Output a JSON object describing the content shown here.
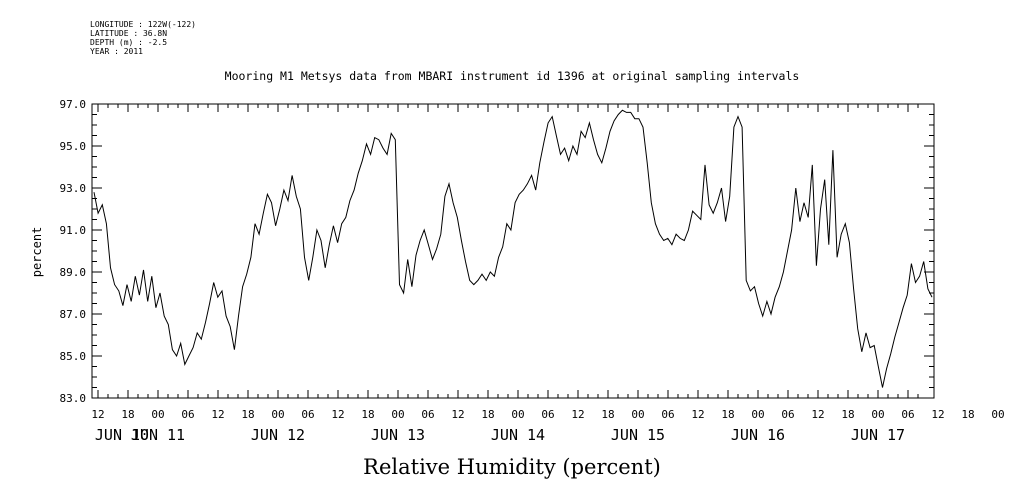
{
  "meta": {
    "longitude": "LONGITUDE : 122W(-122)",
    "latitude": "LATITUDE : 36.8N",
    "depth": "DEPTH (m) : -2.5",
    "year": "YEAR : 2011"
  },
  "chart_data": {
    "type": "line",
    "title": "Mooring M1 Metsys data from MBARI instrument id 1396 at original sampling intervals",
    "xlabel": "Relative Humidity (percent)",
    "ylabel": "percent",
    "ylim": [
      83.0,
      97.0
    ],
    "yticks": [
      "83.0",
      "85.0",
      "87.0",
      "89.0",
      "91.0",
      "93.0",
      "95.0",
      "97.0"
    ],
    "xlim_hours_labels": "JUN 10 09:00 to JUN 17 14:00",
    "hour_tick_labels": [
      "12",
      "18",
      "00",
      "06",
      "12",
      "18",
      "00",
      "06",
      "12",
      "18",
      "00",
      "06",
      "12",
      "18",
      "00",
      "06",
      "12",
      "18",
      "00",
      "06",
      "12",
      "18",
      "00",
      "06",
      "12",
      "18",
      "00",
      "06",
      "12",
      "18",
      "00",
      "06"
    ],
    "day_labels": [
      "JUN 10",
      "JUN 11",
      "JUN 12",
      "JUN 13",
      "JUN 14",
      "JUN 15",
      "JUN 16",
      "JUN 17"
    ],
    "grid": false,
    "series": [
      {
        "values": [
          [
            1,
            92.8
          ],
          [
            2,
            91.8
          ],
          [
            3,
            92.2
          ],
          [
            4,
            91.3
          ],
          [
            5,
            89.2
          ],
          [
            6,
            88.4
          ],
          [
            7,
            88.1
          ],
          [
            8,
            87.4
          ],
          [
            9,
            88.4
          ],
          [
            10,
            87.6
          ],
          [
            11,
            88.8
          ],
          [
            12,
            87.9
          ],
          [
            13,
            89.1
          ],
          [
            14,
            87.6
          ],
          [
            15,
            88.8
          ],
          [
            16,
            87.3
          ],
          [
            17,
            88.0
          ],
          [
            18,
            86.9
          ],
          [
            19,
            86.5
          ],
          [
            20,
            85.3
          ],
          [
            21,
            85.0
          ],
          [
            22,
            85.6
          ],
          [
            23,
            84.6
          ],
          [
            24,
            85.0
          ],
          [
            25,
            85.4
          ],
          [
            26,
            86.1
          ],
          [
            27,
            85.8
          ],
          [
            28,
            86.6
          ],
          [
            29,
            87.5
          ],
          [
            30,
            88.5
          ],
          [
            31,
            87.8
          ],
          [
            32,
            88.1
          ],
          [
            33,
            86.9
          ],
          [
            34,
            86.4
          ],
          [
            35,
            85.3
          ],
          [
            36,
            86.9
          ],
          [
            37,
            88.3
          ],
          [
            38,
            88.9
          ],
          [
            39,
            89.7
          ],
          [
            40,
            91.3
          ],
          [
            41,
            90.8
          ],
          [
            42,
            91.8
          ],
          [
            43,
            92.7
          ],
          [
            44,
            92.3
          ],
          [
            45,
            91.2
          ],
          [
            46,
            92.0
          ],
          [
            47,
            92.9
          ],
          [
            48,
            92.4
          ],
          [
            49,
            93.6
          ],
          [
            50,
            92.6
          ],
          [
            51,
            92.0
          ],
          [
            52,
            89.7
          ],
          [
            53,
            88.6
          ],
          [
            54,
            89.7
          ],
          [
            55,
            91.0
          ],
          [
            56,
            90.5
          ],
          [
            57,
            89.2
          ],
          [
            58,
            90.3
          ],
          [
            59,
            91.2
          ],
          [
            60,
            90.4
          ],
          [
            61,
            91.3
          ],
          [
            62,
            91.6
          ],
          [
            63,
            92.4
          ],
          [
            64,
            92.9
          ],
          [
            65,
            93.7
          ],
          [
            66,
            94.3
          ],
          [
            67,
            95.1
          ],
          [
            68,
            94.6
          ],
          [
            69,
            95.4
          ],
          [
            70,
            95.3
          ],
          [
            71,
            94.9
          ],
          [
            72,
            94.6
          ],
          [
            73,
            95.6
          ],
          [
            74,
            95.3
          ],
          [
            75,
            88.4
          ],
          [
            76,
            88.0
          ],
          [
            77,
            89.6
          ],
          [
            78,
            88.3
          ],
          [
            79,
            89.8
          ],
          [
            80,
            90.5
          ],
          [
            81,
            91.0
          ],
          [
            82,
            90.3
          ],
          [
            83,
            89.6
          ],
          [
            84,
            90.1
          ],
          [
            85,
            90.8
          ],
          [
            86,
            92.6
          ],
          [
            87,
            93.2
          ],
          [
            88,
            92.3
          ],
          [
            89,
            91.6
          ],
          [
            90,
            90.5
          ],
          [
            91,
            89.5
          ],
          [
            92,
            88.6
          ],
          [
            93,
            88.4
          ],
          [
            94,
            88.6
          ],
          [
            95,
            88.9
          ],
          [
            96,
            88.6
          ],
          [
            97,
            89.0
          ],
          [
            98,
            88.8
          ],
          [
            99,
            89.7
          ],
          [
            100,
            90.2
          ],
          [
            101,
            91.3
          ],
          [
            102,
            91.0
          ],
          [
            103,
            92.3
          ],
          [
            104,
            92.7
          ],
          [
            105,
            92.9
          ],
          [
            106,
            93.2
          ],
          [
            107,
            93.6
          ],
          [
            108,
            92.9
          ],
          [
            109,
            94.2
          ],
          [
            110,
            95.2
          ],
          [
            111,
            96.1
          ],
          [
            112,
            96.4
          ],
          [
            113,
            95.5
          ],
          [
            114,
            94.6
          ],
          [
            115,
            94.9
          ],
          [
            116,
            94.3
          ],
          [
            117,
            95.0
          ],
          [
            118,
            94.6
          ],
          [
            119,
            95.7
          ],
          [
            120,
            95.4
          ],
          [
            121,
            96.1
          ],
          [
            122,
            95.3
          ],
          [
            123,
            94.6
          ],
          [
            124,
            94.2
          ],
          [
            125,
            94.9
          ],
          [
            126,
            95.7
          ],
          [
            127,
            96.2
          ],
          [
            128,
            96.5
          ],
          [
            129,
            96.7
          ],
          [
            130,
            96.6
          ],
          [
            131,
            96.6
          ],
          [
            132,
            96.3
          ],
          [
            133,
            96.3
          ],
          [
            134,
            95.9
          ],
          [
            135,
            94.2
          ],
          [
            136,
            92.3
          ],
          [
            137,
            91.3
          ],
          [
            138,
            90.8
          ],
          [
            139,
            90.5
          ],
          [
            140,
            90.6
          ],
          [
            141,
            90.3
          ],
          [
            142,
            90.8
          ],
          [
            143,
            90.6
          ],
          [
            144,
            90.5
          ],
          [
            145,
            91.0
          ],
          [
            146,
            91.9
          ],
          [
            147,
            91.7
          ],
          [
            148,
            91.5
          ],
          [
            149,
            94.1
          ],
          [
            150,
            92.2
          ],
          [
            151,
            91.8
          ],
          [
            152,
            92.3
          ],
          [
            153,
            93.0
          ],
          [
            154,
            91.4
          ],
          [
            155,
            92.6
          ],
          [
            156,
            95.9
          ],
          [
            157,
            96.4
          ],
          [
            158,
            95.9
          ],
          [
            159,
            88.6
          ],
          [
            160,
            88.1
          ],
          [
            161,
            88.3
          ],
          [
            162,
            87.5
          ],
          [
            163,
            86.9
          ],
          [
            164,
            87.6
          ],
          [
            165,
            87.0
          ],
          [
            166,
            87.8
          ],
          [
            167,
            88.3
          ],
          [
            168,
            89.0
          ],
          [
            169,
            90.0
          ],
          [
            170,
            91.0
          ],
          [
            171,
            93.0
          ],
          [
            172,
            91.4
          ],
          [
            173,
            92.3
          ],
          [
            174,
            91.6
          ],
          [
            175,
            94.1
          ],
          [
            176,
            89.3
          ],
          [
            177,
            92.0
          ],
          [
            178,
            93.4
          ],
          [
            179,
            90.3
          ],
          [
            180,
            94.8
          ],
          [
            181,
            89.7
          ],
          [
            182,
            90.8
          ],
          [
            183,
            91.3
          ],
          [
            184,
            90.4
          ],
          [
            185,
            88.2
          ],
          [
            186,
            86.3
          ],
          [
            187,
            85.2
          ],
          [
            188,
            86.1
          ],
          [
            189,
            85.4
          ],
          [
            190,
            85.5
          ],
          [
            191,
            84.5
          ],
          [
            192,
            83.5
          ],
          [
            193,
            84.4
          ],
          [
            194,
            85.1
          ],
          [
            195,
            85.9
          ],
          [
            196,
            86.6
          ],
          [
            197,
            87.3
          ],
          [
            198,
            87.9
          ],
          [
            199,
            89.4
          ],
          [
            200,
            88.5
          ],
          [
            201,
            88.8
          ],
          [
            202,
            89.5
          ],
          [
            203,
            88.2
          ],
          [
            204,
            87.8
          ]
        ]
      }
    ]
  }
}
